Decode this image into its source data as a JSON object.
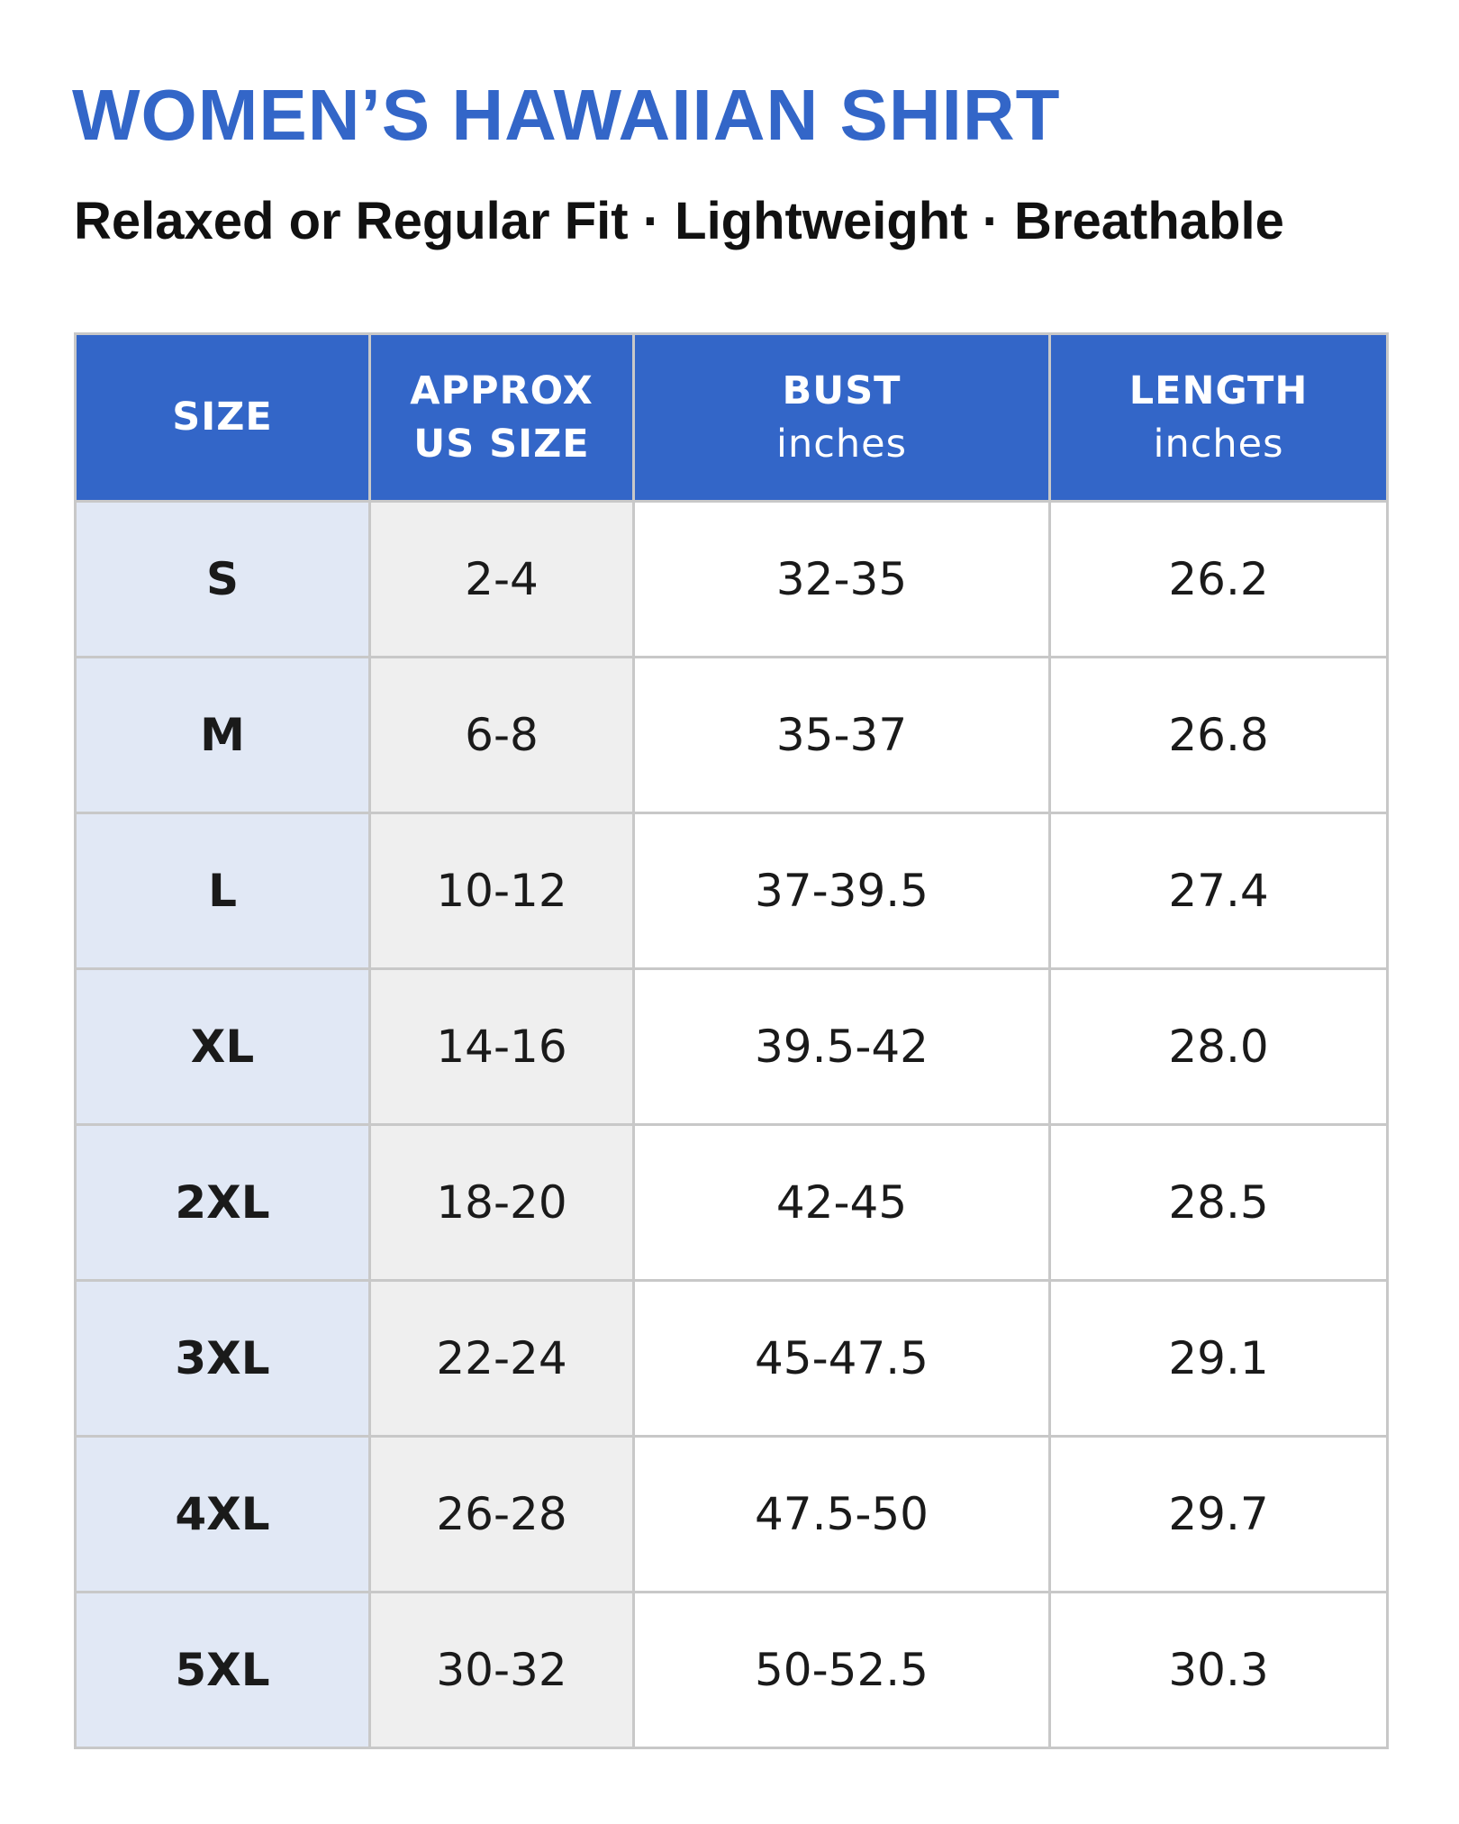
{
  "header": {
    "title": "WOMEN’S HAWAIIAN SHIRT",
    "subtitle": "Relaxed or Regular Fit · Lightweight · Breathable"
  },
  "table": {
    "columns": [
      {
        "name": "SIZE"
      },
      {
        "name": "APPROX US SIZE"
      },
      {
        "name": "BUST",
        "unit": "inches"
      },
      {
        "name": "LENGTH",
        "unit": "inches"
      }
    ],
    "rows": [
      [
        "S",
        "2-4",
        "32-35",
        "26.2"
      ],
      [
        "M",
        "6-8",
        "35-37",
        "26.8"
      ],
      [
        "L",
        "10-12",
        "37-39.5",
        "27.4"
      ],
      [
        "XL",
        "14-16",
        "39.5-42",
        "28.0"
      ],
      [
        "2XL",
        "18-20",
        "42-45",
        "28.5"
      ],
      [
        "3XL",
        "22-24",
        "45-47.5",
        "29.1"
      ],
      [
        "4XL",
        "26-28",
        "47.5-50",
        "29.7"
      ],
      [
        "5XL",
        "30-32",
        "50-52.5",
        "30.3"
      ]
    ]
  }
}
